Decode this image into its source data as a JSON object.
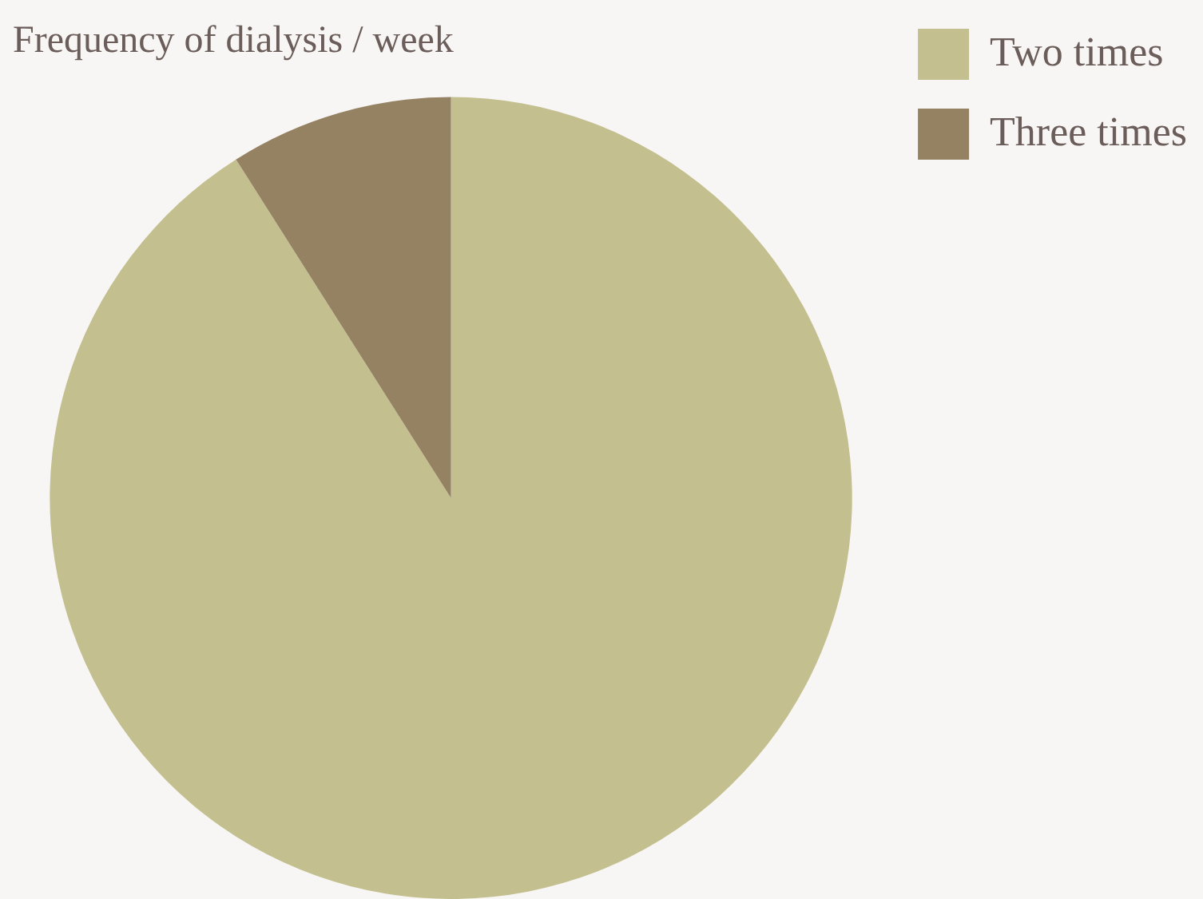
{
  "chart_data": {
    "type": "pie",
    "title": "Frequency of dialysis / week",
    "categories": [
      "Two times",
      "Three times"
    ],
    "values": [
      91,
      9
    ],
    "colors": [
      "#c3bf8e",
      "#948262"
    ],
    "legend": "right"
  }
}
